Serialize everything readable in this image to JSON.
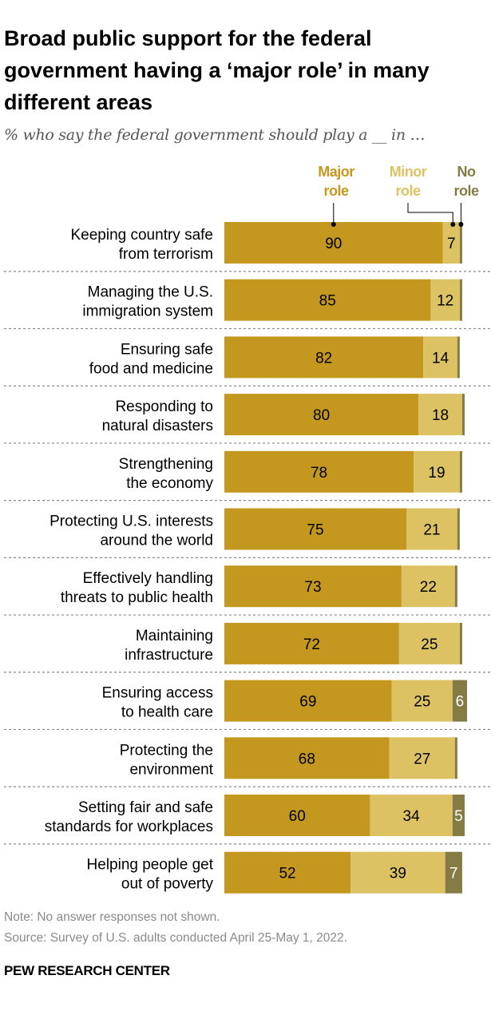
{
  "title": "Broad public support for the federal government having a ‘major role’ in many different areas",
  "subtitle": "% who say the federal government should play a __ in …",
  "note": "Note: No answer responses not shown.",
  "source": "Source: Survey of U.S. adults conducted April 25-May 1, 2022.",
  "brand": "PEW RESEARCH CENTER",
  "chart_data": {
    "type": "bar",
    "orientation": "horizontal",
    "stacked": true,
    "xlim": [
      0,
      100
    ],
    "grid": false,
    "legend_placement": "top",
    "categories": [
      [
        "Keeping country safe",
        "from terrorism"
      ],
      [
        "Managing the U.S.",
        "immigration system"
      ],
      [
        "Ensuring safe",
        "food and medicine"
      ],
      [
        "Responding to",
        "natural disasters"
      ],
      [
        "Strengthening",
        "the economy"
      ],
      [
        "Protecting U.S. interests",
        "around the world"
      ],
      [
        "Effectively handling",
        "threats to public health"
      ],
      [
        "Maintaining",
        "infrastructure"
      ],
      [
        "Ensuring access",
        "to health care"
      ],
      [
        "Protecting the",
        "environment"
      ],
      [
        "Setting fair and safe",
        "standards for workplaces"
      ],
      [
        "Helping people get",
        "out of poverty"
      ]
    ],
    "series": [
      {
        "name": [
          "Major",
          "role"
        ],
        "color": "#c4981e",
        "values": [
          90,
          85,
          82,
          80,
          78,
          75,
          73,
          72,
          69,
          68,
          60,
          52
        ],
        "labeled": [
          true,
          true,
          true,
          true,
          true,
          true,
          true,
          true,
          true,
          true,
          true,
          true
        ]
      },
      {
        "name": [
          "Minor",
          "role"
        ],
        "color": "#dcc263",
        "values": [
          7,
          12,
          14,
          18,
          19,
          21,
          22,
          25,
          25,
          27,
          34,
          39
        ],
        "labeled": [
          true,
          true,
          true,
          true,
          true,
          true,
          true,
          true,
          true,
          true,
          true,
          true
        ]
      },
      {
        "name": [
          "No",
          "role"
        ],
        "color": "#857c45",
        "values": [
          1,
          1,
          1,
          1,
          1,
          1,
          1,
          1,
          6,
          1,
          5,
          7
        ],
        "labeled": [
          false,
          false,
          false,
          false,
          false,
          false,
          false,
          false,
          true,
          false,
          true,
          true
        ]
      }
    ]
  }
}
